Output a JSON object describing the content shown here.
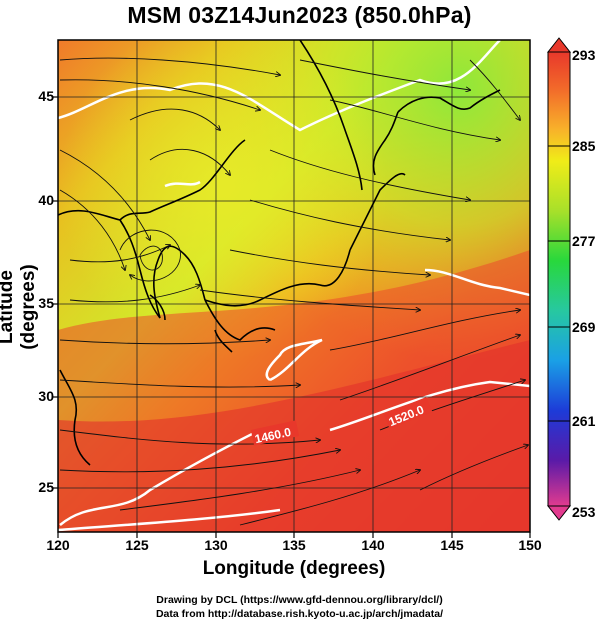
{
  "title": "MSM 03Z14Jun2023 (850.0hPa)",
  "axes": {
    "xlabel": "Longitude (degrees)",
    "ylabel": "Latitude  (degrees)",
    "x_ticks": [
      "120",
      "125",
      "130",
      "135",
      "140",
      "145",
      "150"
    ],
    "y_ticks": [
      "25",
      "30",
      "35",
      "40",
      "45"
    ]
  },
  "colorbar": {
    "labels": [
      "293",
      "285",
      "277",
      "269",
      "261",
      "253"
    ],
    "range": [
      253,
      293
    ],
    "colors": [
      "#e23b8f",
      "#5a1aa8",
      "#1d3bd8",
      "#1aa0e6",
      "#27c8a0",
      "#28d83c",
      "#a8e02a",
      "#f0ec18",
      "#f8b12a",
      "#f2692a",
      "#e8382b"
    ]
  },
  "contour_labels": [
    "1460.0",
    "1520.0"
  ],
  "credits": {
    "line1": "Drawing by DCL (https://www.gfd-dennou.org/library/dcl/)",
    "line2": "Data from http://database.rish.kyoto-u.ac.jp/arch/jmadata/"
  },
  "chart_data": {
    "type": "heatmap",
    "title": "MSM 03Z14Jun2023 (850.0hPa)",
    "xlabel": "Longitude (degrees)",
    "ylabel": "Latitude  (degrees)",
    "xlim": [
      120,
      150
    ],
    "ylim": [
      22.4,
      47.6
    ],
    "x_ticks": [
      120,
      125,
      130,
      135,
      140,
      145,
      150
    ],
    "y_ticks": [
      25,
      30,
      35,
      40,
      45
    ],
    "color_range": [
      253,
      293
    ],
    "colorbar_ticks": [
      293,
      285,
      277,
      269,
      261,
      253
    ],
    "overlays": [
      "streamlines",
      "geopotential height contours",
      "coastlines",
      "grid"
    ],
    "contour_labels": [
      1460.0,
      1520.0
    ],
    "grid": true
  }
}
